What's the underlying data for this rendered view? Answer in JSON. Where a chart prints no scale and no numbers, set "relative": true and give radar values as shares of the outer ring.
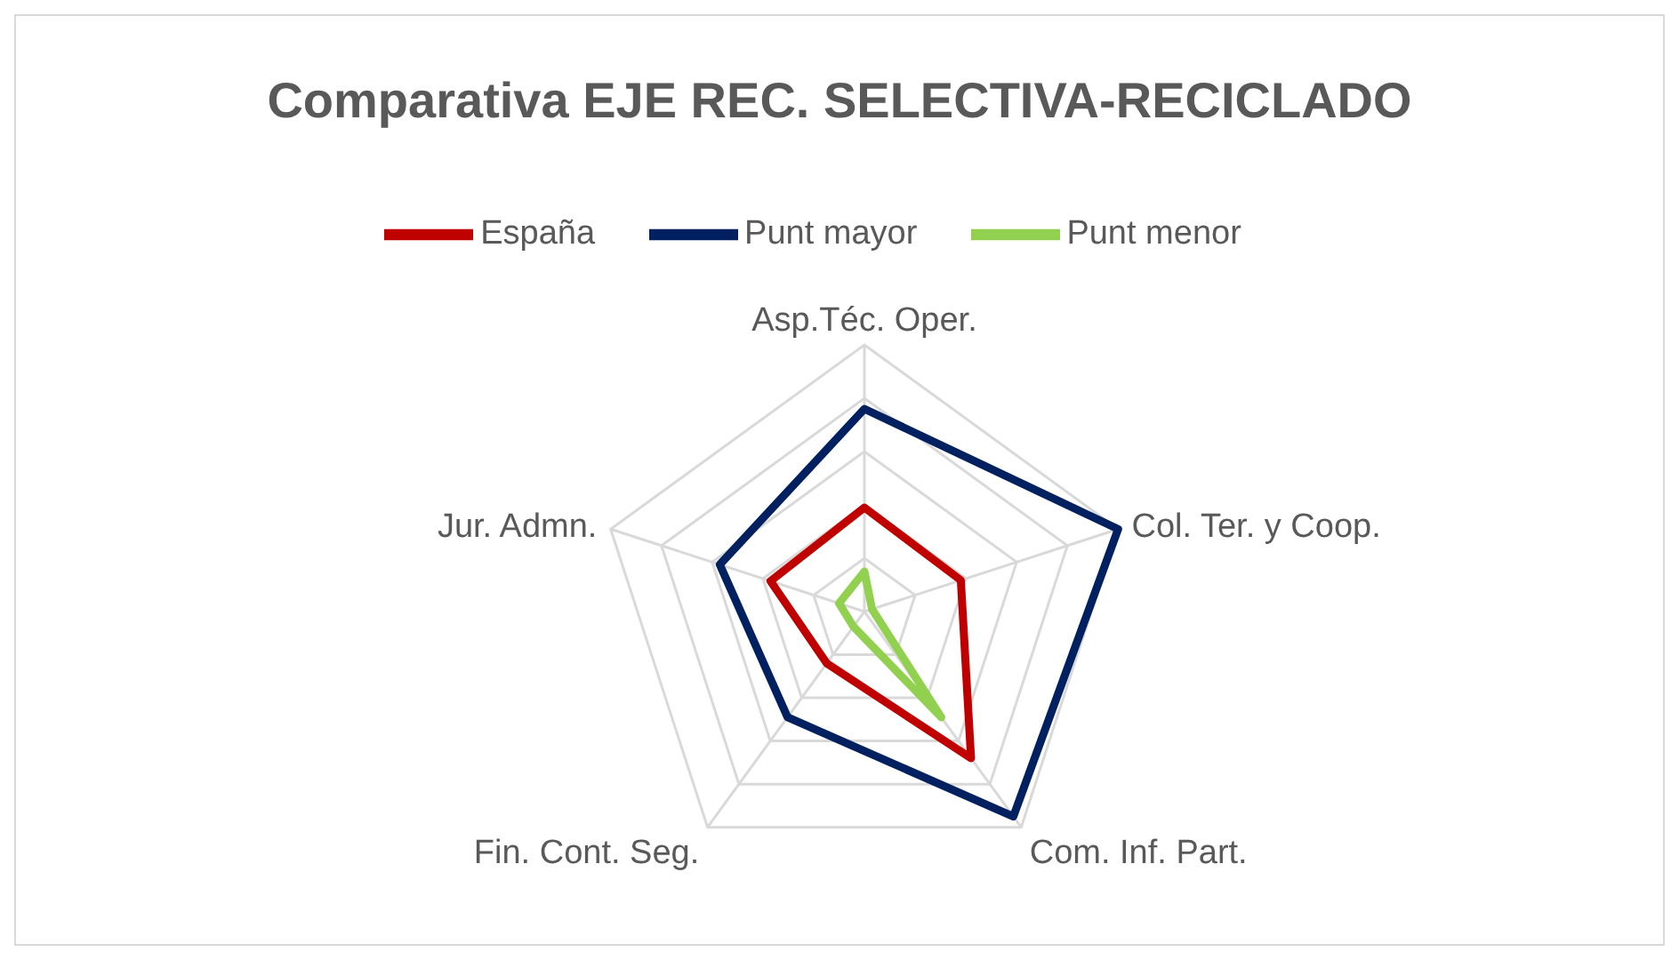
{
  "chart_data": {
    "type": "radar",
    "title": "Comparativa EJE REC. SELECTIVA-RECICLADO",
    "categories": [
      "Asp.Téc. Oper.",
      "Col. Ter. y Coop.",
      "Com. Inf. Part.",
      "Fin. Cont. Seg.",
      "Jur. Admn."
    ],
    "relative": true,
    "grid": true,
    "legend": "top",
    "marker": "none",
    "line_style": "solid",
    "series": [
      {
        "name": "España",
        "color": "#c00000",
        "values": [
          0.39,
          0.38,
          0.68,
          0.24,
          0.37
        ]
      },
      {
        "name": "Punt mayor",
        "color": "#002060",
        "values": [
          0.76,
          1.0,
          0.95,
          0.49,
          0.57
        ]
      },
      {
        "name": "Punt menor",
        "color": "#92d050",
        "values": [
          0.15,
          0.03,
          0.49,
          0.07,
          0.1
        ]
      }
    ]
  }
}
